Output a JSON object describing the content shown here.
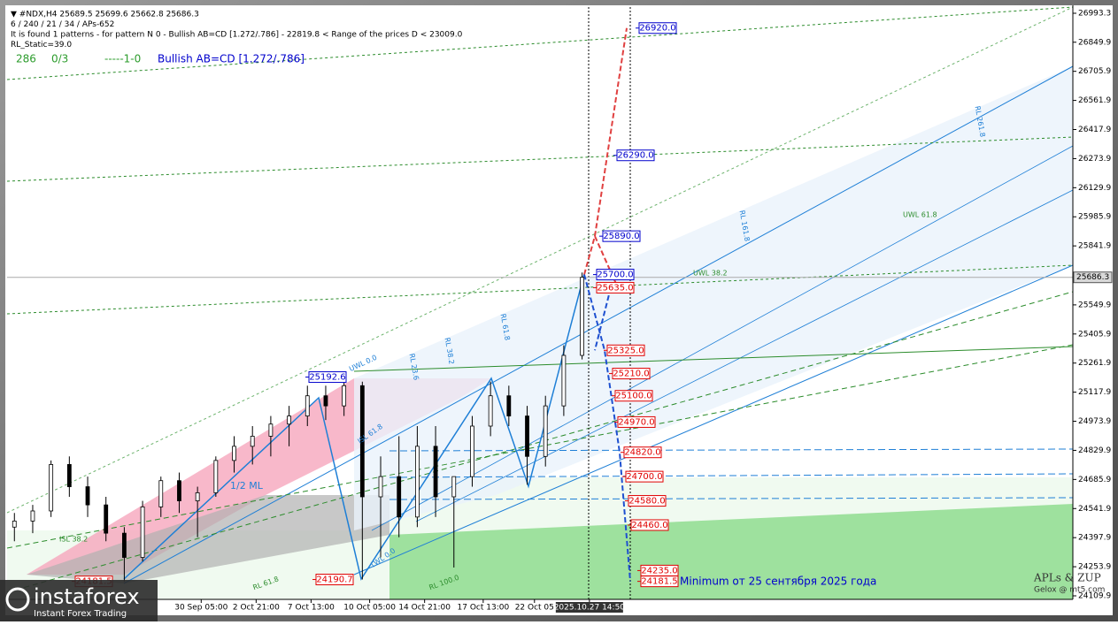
{
  "chart_data": {
    "type": "candlestick",
    "header": [
      "▼ #NDX,H4  25689.5 25699.6 25662.8 25686.3",
      "6 / 240 / 21 / 34 / APs-652",
      "It is found 1 patterns  -  for pattern N 0 - Bullish AB=CD [1.272/.786] - 22819.8 < Range of the prices D < 23009.0",
      "RL_Static=39.0"
    ],
    "info_line": [
      "286",
      "0/3",
      "-----1-0",
      "Bullish AB=CD [1.272/.786]"
    ],
    "annotations": [
      "Minimum от 25 сентября 2025 года",
      "APLs & ZUP",
      "Gelox @ mt5.com",
      "1/2 ML",
      "UWL 0.0",
      "UWL 38.2",
      "UWL 61.8",
      "RL 23.6",
      "RL 38.2",
      "RL 61.8",
      "RL 161.8",
      "RL 261.8",
      "ISL 38.2",
      "ISL 61.8",
      "RL 61.8",
      "RL 100.0",
      "LWL 0.0"
    ],
    "logo": [
      "instaforex",
      "Instant Forex Trading"
    ],
    "x": [
      2,
      7,
      12,
      17,
      22,
      27,
      32,
      37,
      42,
      47,
      52,
      57,
      62,
      67,
      72,
      77,
      82,
      87,
      92,
      97,
      102,
      107,
      112,
      117,
      122,
      127,
      132,
      137,
      142,
      147,
      152,
      157
    ],
    "open": [
      24450,
      24480,
      24530,
      24760,
      24650,
      24560,
      24420,
      24300,
      24550,
      24680,
      24580,
      24620,
      24780,
      24850,
      24900,
      24960,
      25000,
      25100,
      25050,
      25150,
      24600,
      24700,
      24500,
      24850,
      24600,
      24700,
      24950,
      25100,
      25000,
      24800,
      25050,
      25300
    ],
    "high": [
      24520,
      24560,
      24780,
      24800,
      24700,
      24600,
      24450,
      24580,
      24700,
      24720,
      24650,
      24800,
      24900,
      24950,
      25000,
      25050,
      25150,
      25150,
      25192.6,
      25170,
      24800,
      24900,
      24950,
      24950,
      24700,
      25000,
      25170,
      25150,
      25050,
      25100,
      25350,
      25710
    ],
    "low": [
      24380,
      24420,
      24500,
      24600,
      24500,
      24380,
      24181.5,
      24280,
      24500,
      24520,
      24400,
      24600,
      24720,
      24760,
      24800,
      24850,
      24950,
      24980,
      25000,
      24190.7,
      24300,
      24400,
      24450,
      24500,
      24250,
      24650,
      24900,
      24950,
      24660,
      24750,
      25000,
      25280
    ],
    "close": [
      24480,
      24530,
      24760,
      24650,
      24560,
      24420,
      24300,
      24550,
      24680,
      24580,
      24620,
      24780,
      24850,
      24900,
      24960,
      25000,
      25100,
      25050,
      25150,
      24600,
      24700,
      24500,
      24850,
      24600,
      24700,
      24950,
      25100,
      25000,
      24800,
      25050,
      25300,
      25686.3
    ],
    "levels": {
      "values": [
        26920.0,
        26290.0,
        25890.0,
        25700.0,
        25635.0,
        25325.0,
        25210.0,
        25100.0,
        24970.0,
        24820.0,
        24700.0,
        24580.0,
        24460.0,
        24235.0,
        24181.5,
        25192.6,
        24181.5,
        24190.7
      ],
      "value_labels": [
        "26920.0",
        "26290.0",
        "25890.0",
        "25700.0",
        "25635.0",
        "25325.0",
        "25210.0",
        "25100.0",
        "24970.0",
        "24820.0",
        "24700.0",
        "24580.0",
        "24460.0",
        "24235.0",
        "24181.5",
        "25192.6",
        "24181.5",
        "24190.7"
      ],
      "colors": [
        "#0000cc",
        "#0000cc",
        "#0000cc",
        "#0000cc",
        "#e00000",
        "#e00000",
        "#e00000",
        "#e00000",
        "#e00000",
        "#e00000",
        "#e00000",
        "#e00000",
        "#e00000",
        "#e00000",
        "#e00000",
        "#0000cc",
        "#e00000",
        "#e00000"
      ]
    },
    "current_price": 25686.3,
    "xlim": [
      0,
      291
    ],
    "xticks": [
      {
        "value": 53,
        "label": "30 Sep 05:00"
      },
      {
        "value": 68,
        "label": "2 Oct 21:00"
      },
      {
        "value": 83,
        "label": "7 Oct 13:00"
      },
      {
        "value": 99,
        "label": "10 Oct 05:00"
      },
      {
        "value": 114,
        "label": "14 Oct 21:00"
      },
      {
        "value": 130,
        "label": "17 Oct 13:00"
      },
      {
        "value": 144,
        "label": "22 Oct 05"
      },
      {
        "value": 159,
        "label": "2025.10.27 14:50"
      }
    ],
    "ylim": [
      24092.4,
      27023.9
    ],
    "yticks": [
      26993.3,
      26849.9,
      26705.9,
      26561.9,
      26417.9,
      26273.9,
      26129.9,
      25985.9,
      25841.9,
      25549.9,
      25405.9,
      25261.9,
      25117.9,
      24973.9,
      24829.9,
      24685.9,
      24541.9,
      24397.9,
      24253.9,
      24109.9
    ]
  }
}
